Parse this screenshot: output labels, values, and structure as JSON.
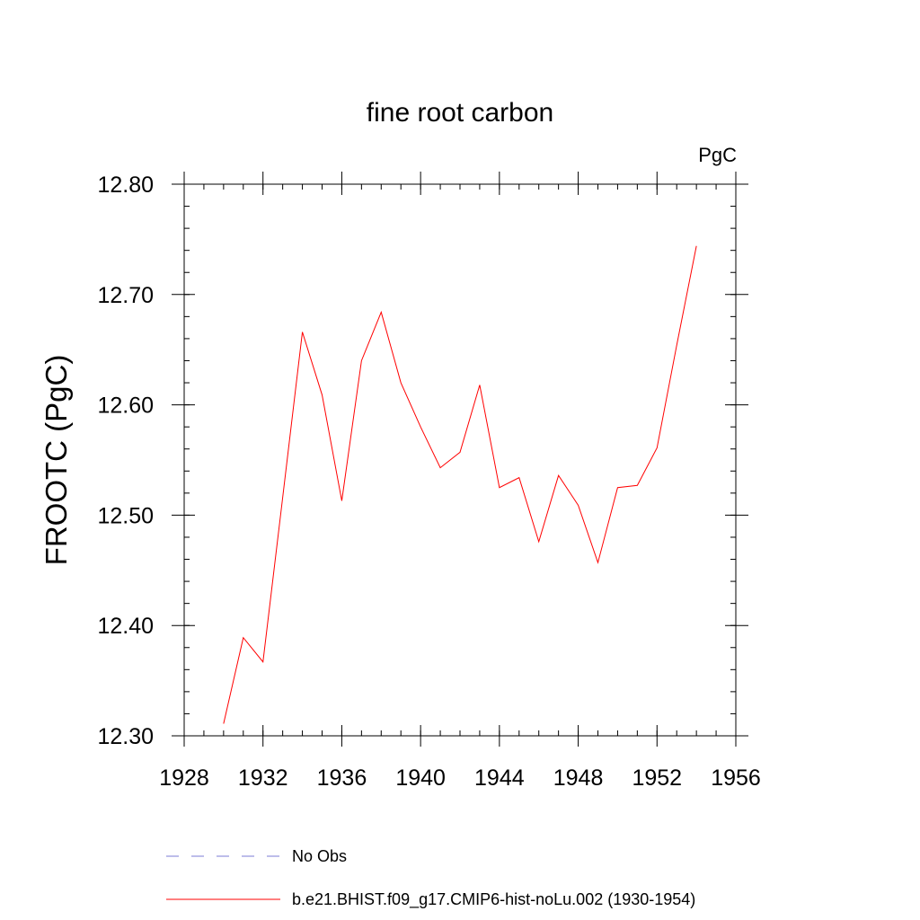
{
  "chart_data": {
    "type": "line",
    "title": "fine root carbon",
    "units_label": "PgC",
    "ylabel": "FROOTC  (PgC)",
    "xlabel": "",
    "xlim": [
      1928,
      1956
    ],
    "ylim": [
      12.3,
      12.8
    ],
    "x_ticks": [
      1928,
      1932,
      1936,
      1940,
      1944,
      1948,
      1952,
      1956
    ],
    "x_tick_labels": [
      "1928",
      "1932",
      "1936",
      "1940",
      "1944",
      "1948",
      "1952",
      "1956"
    ],
    "y_ticks": [
      12.3,
      12.4,
      12.5,
      12.6,
      12.7,
      12.8
    ],
    "y_tick_labels": [
      "12.30",
      "12.40",
      "12.50",
      "12.60",
      "12.70",
      "12.80"
    ],
    "grid": false,
    "legend_position": "bottom",
    "series": [
      {
        "name": "b.e21.BHIST.f09_g17.CMIP6-hist-noLu.002 (1930-1954)",
        "color": "#ff0000",
        "style": "solid",
        "x": [
          1930,
          1931,
          1932,
          1933,
          1934,
          1935,
          1936,
          1937,
          1938,
          1939,
          1940,
          1941,
          1942,
          1943,
          1944,
          1945,
          1946,
          1947,
          1948,
          1949,
          1950,
          1951,
          1952,
          1953,
          1954
        ],
        "values": [
          12.311,
          12.389,
          12.367,
          12.516,
          12.666,
          12.609,
          12.513,
          12.64,
          12.684,
          12.62,
          12.58,
          12.543,
          12.557,
          12.618,
          12.525,
          12.534,
          12.476,
          12.536,
          12.509,
          12.457,
          12.525,
          12.527,
          12.561,
          12.654,
          12.744
        ]
      }
    ],
    "legend": [
      {
        "label": "No Obs",
        "color": "#7b7bd6",
        "style": "dashed"
      },
      {
        "label": "b.e21.BHIST.f09_g17.CMIP6-hist-noLu.002 (1930-1954)",
        "color": "#ff0000",
        "style": "solid"
      }
    ]
  }
}
